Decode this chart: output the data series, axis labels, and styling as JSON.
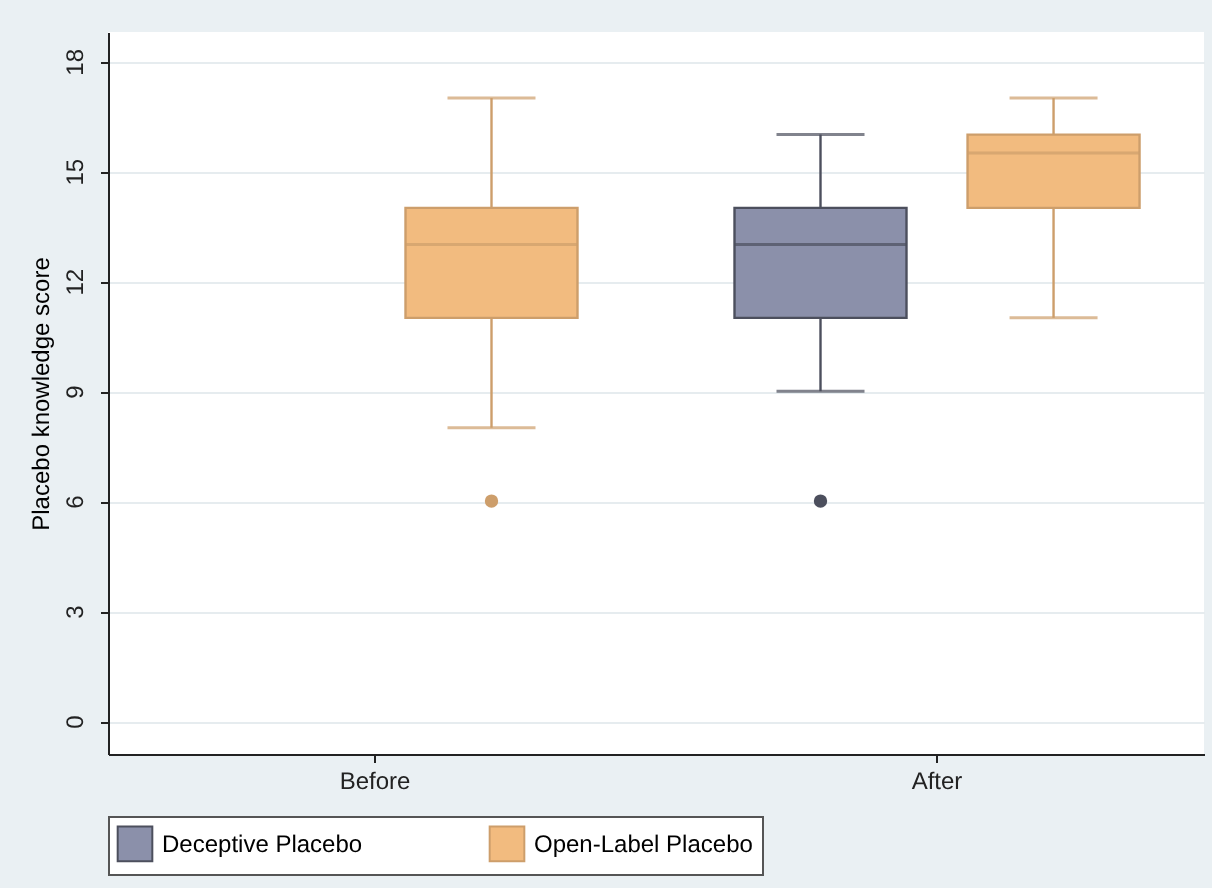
{
  "chart_data": {
    "type": "box",
    "ylabel": "Placebo knowledge score",
    "categories": [
      "Before",
      "After"
    ],
    "series": [
      {
        "name": "Deceptive Placebo",
        "color": "#8b90aa",
        "boxes": [
          null,
          {
            "low": 9,
            "q1": 11,
            "median": 13,
            "q3": 14,
            "high": 16,
            "outliers": [
              6
            ]
          }
        ]
      },
      {
        "name": "Open-Label Placebo",
        "color": "#f2bb7f",
        "boxes": [
          {
            "low": 8,
            "q1": 11,
            "median": 13,
            "q3": 14,
            "high": 17,
            "outliers": [
              6
            ]
          },
          {
            "low": 11,
            "q1": 14,
            "median": 15.5,
            "q3": 16,
            "high": 17
          }
        ]
      }
    ],
    "ylim": [
      -0.9,
      18.8
    ],
    "yticks": [
      0,
      3,
      6,
      9,
      12,
      15,
      18
    ],
    "grid": "y",
    "legend": "bottom"
  }
}
